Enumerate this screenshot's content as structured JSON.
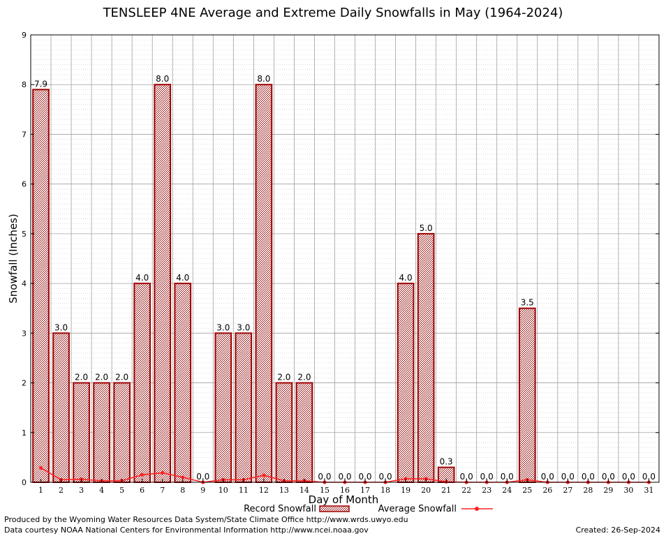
{
  "chart_data": {
    "type": "bar",
    "title": "TENSLEEP 4NE Average and Extreme Daily Snowfalls in May (1964-2024)",
    "xlabel": "Day of Month",
    "ylabel": "Snowfall (Inches)",
    "ylim": [
      0,
      9
    ],
    "yticks": [
      "0",
      "1",
      "2",
      "3",
      "4",
      "5",
      "6",
      "7",
      "8",
      "9"
    ],
    "categories": [
      "1",
      "2",
      "3",
      "4",
      "5",
      "6",
      "7",
      "8",
      "9",
      "10",
      "11",
      "12",
      "13",
      "14",
      "15",
      "16",
      "17",
      "18",
      "19",
      "20",
      "21",
      "22",
      "23",
      "24",
      "25",
      "26",
      "27",
      "28",
      "29",
      "30",
      "31"
    ],
    "series": [
      {
        "name": "Record Snowfall",
        "type": "bar",
        "color": "#a00000",
        "values": [
          7.9,
          3.0,
          2.0,
          2.0,
          2.0,
          4.0,
          8.0,
          4.0,
          0.0,
          3.0,
          3.0,
          8.0,
          2.0,
          2.0,
          0.0,
          0.0,
          0.0,
          0.0,
          4.0,
          5.0,
          0.3,
          0.0,
          0.0,
          0.0,
          3.5,
          0.0,
          0.0,
          0.0,
          0.0,
          0.0,
          0.0
        ],
        "labels": [
          "7.9",
          "3.0",
          "2.0",
          "2.0",
          "2.0",
          "4.0",
          "8.0",
          "4.0",
          "0.0",
          "3.0",
          "3.0",
          "8.0",
          "2.0",
          "2.0",
          "0.0",
          "0.0",
          "0.0",
          "0.0",
          "4.0",
          "5.0",
          "0.3",
          "0.0",
          "0.0",
          "0.0",
          "3.5",
          "0.0",
          "0.0",
          "0.0",
          "0.0",
          "0.0",
          "0.0"
        ]
      },
      {
        "name": "Average Snowfall",
        "type": "line",
        "color": "#ff2020",
        "values": [
          0.29,
          0.05,
          0.06,
          0.03,
          0.03,
          0.15,
          0.19,
          0.1,
          0.0,
          0.05,
          0.05,
          0.14,
          0.03,
          0.03,
          0.0,
          0.0,
          0.0,
          0.0,
          0.07,
          0.07,
          0.01,
          0.0,
          0.0,
          0.0,
          0.05,
          0.0,
          0.0,
          0.0,
          0.0,
          0.0,
          0.0
        ]
      }
    ],
    "legend": [
      "Record Snowfall",
      "Average Snowfall"
    ],
    "grid": true
  },
  "footer": {
    "produced_by": "Produced by the Wyoming Water Resources Data System/State Climate Office http://www.wrds.uwyo.edu",
    "data_courtesy": "Data courtesy NOAA National Centers for Environmental Information http://www.ncei.noaa.gov",
    "created": "Created: 26-Sep-2024"
  }
}
